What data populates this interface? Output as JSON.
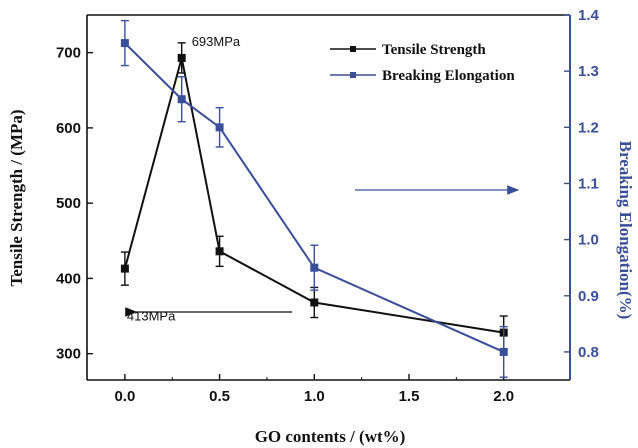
{
  "chart_data": {
    "type": "line",
    "xlabel": "GO contents / (wt%)",
    "ylabel_left": "Tensile Strength / (MPa)",
    "ylabel_right": "Breaking Elongation(%)",
    "x_ticks": [
      "0.0",
      "0.5",
      "1.0",
      "1.5",
      "2.0"
    ],
    "y_left_ticks": [
      "300",
      "400",
      "500",
      "600",
      "700"
    ],
    "y_right_ticks": [
      "0.8",
      "0.9",
      "1.0",
      "1.1",
      "1.2",
      "1.3",
      "1.4"
    ],
    "xlim": [
      -0.2,
      2.35
    ],
    "ylim_left": [
      265,
      750
    ],
    "ylim_right": [
      0.75,
      1.4
    ],
    "legend_position": "top-right",
    "series": [
      {
        "name": "Tensile Strength",
        "axis": "left",
        "color": "#111111",
        "x": [
          0.0,
          0.3,
          0.5,
          1.0,
          2.0
        ],
        "y": [
          413,
          693,
          436,
          368,
          328
        ],
        "err": [
          22,
          20,
          20,
          20,
          22
        ]
      },
      {
        "name": "Breaking Elongation",
        "axis": "right",
        "color": "#3a4f9a",
        "x": [
          0.0,
          0.3,
          0.5,
          1.0,
          2.0
        ],
        "y": [
          1.35,
          1.25,
          1.2,
          0.95,
          0.8
        ],
        "err": [
          0.04,
          0.04,
          0.035,
          0.04,
          0.045
        ]
      }
    ],
    "annotations": [
      {
        "text": "693MPa",
        "x": 0.3,
        "y": 693
      },
      {
        "text": "413MPa",
        "x": 0.0,
        "y": 413
      }
    ]
  }
}
